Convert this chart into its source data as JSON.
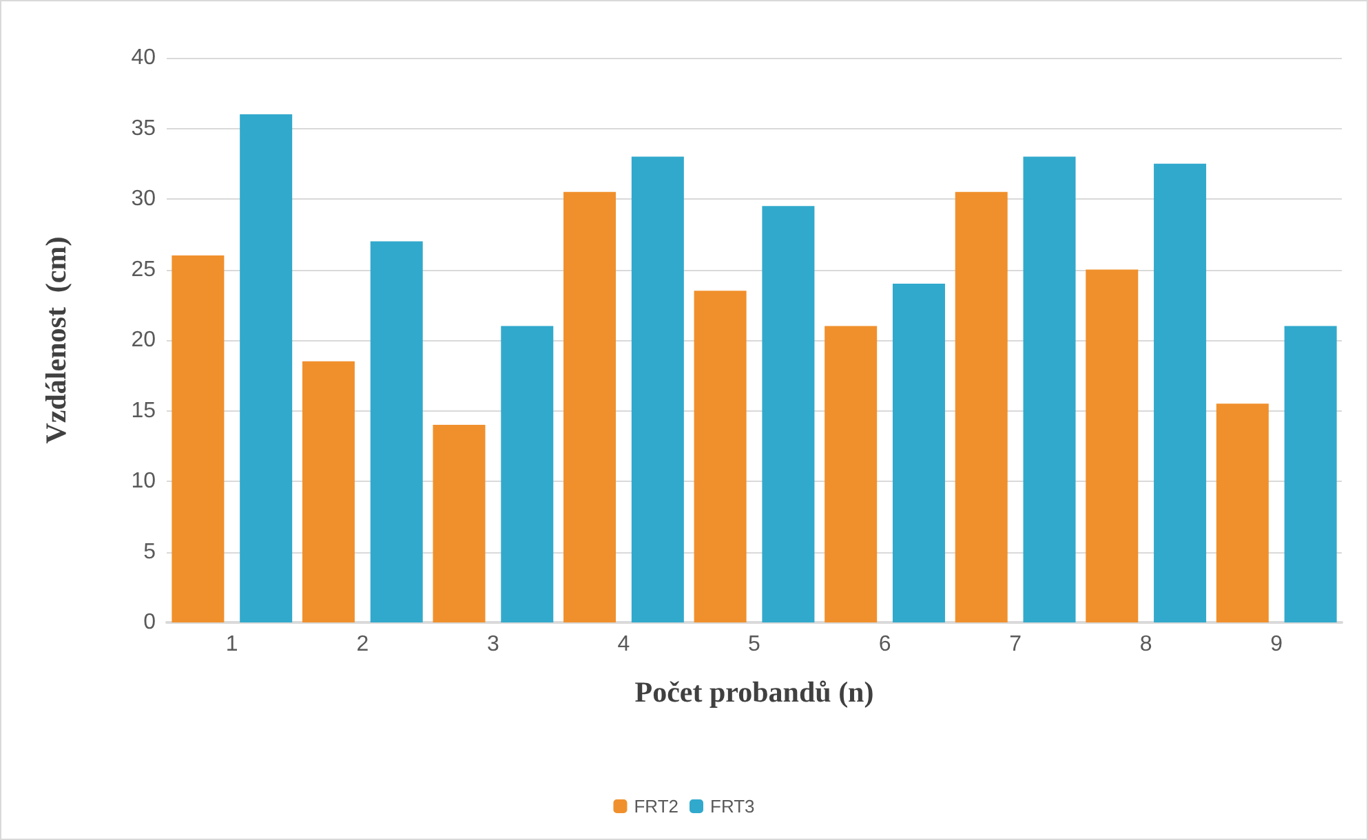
{
  "chart_data": {
    "type": "bar",
    "xlabel": "Počet probandů (n)",
    "ylabel": "Vzdálenost  (cm)",
    "categories": [
      "1",
      "2",
      "3",
      "4",
      "5",
      "6",
      "7",
      "8",
      "9"
    ],
    "series": [
      {
        "name": "FRT2",
        "color": "#f0902c",
        "values": [
          26,
          18.5,
          14,
          30.5,
          23.5,
          21,
          30.5,
          25,
          15.5
        ]
      },
      {
        "name": "FRT3",
        "color": "#31a9cc",
        "values": [
          36,
          27,
          21,
          33,
          29.5,
          24,
          33,
          32.5,
          21
        ]
      }
    ],
    "ylim": [
      0,
      40
    ],
    "yticks": [
      0,
      5,
      10,
      15,
      20,
      25,
      30,
      35,
      40
    ],
    "grid": "y",
    "legend": "bottom"
  }
}
